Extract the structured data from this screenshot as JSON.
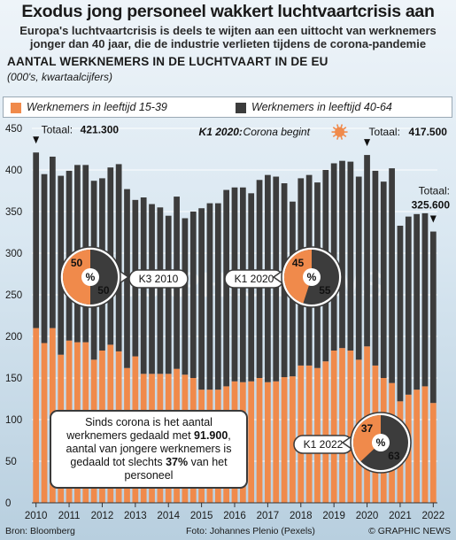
{
  "title": "Exodus jong personeel wakkert luchtvaartcrisis aan",
  "subtitle_line1": "Europa's luchtvaartcrisis is deels te wijten aan een uittocht van werknemers",
  "subtitle_line2": "jonger dan 40 jaar, die de industrie verlieten tijdens de corona-pandemie",
  "watermark": "GRAPHIC NEWS",
  "chart_data": {
    "type": "bar",
    "stacked": true,
    "ylabel": "AANTAL WERKNEMERS IN DE LUCHTVAART IN DE EU",
    "yunit": "(000's, kwartaalcijfers)",
    "ylim": [
      0,
      450
    ],
    "yticks": [
      "0",
      "50",
      "100",
      "150",
      "200",
      "250",
      "300",
      "350",
      "400",
      "450"
    ],
    "x_tick_labels": [
      "2010",
      "2011",
      "2012",
      "2013",
      "2014",
      "2015",
      "2016",
      "2017",
      "2018",
      "2019",
      "2020",
      "2021",
      "2022"
    ],
    "quarters": [
      "2010 K1",
      "2010 K2",
      "2010 K3",
      "2010 K4",
      "2011 K1",
      "2011 K2",
      "2011 K3",
      "2011 K4",
      "2012 K1",
      "2012 K2",
      "2012 K3",
      "2012 K4",
      "2013 K1",
      "2013 K2",
      "2013 K3",
      "2013 K4",
      "2014 K1",
      "2014 K2",
      "2014 K3",
      "2014 K4",
      "2015 K1",
      "2015 K2",
      "2015 K3",
      "2015 K4",
      "2016 K1",
      "2016 K2",
      "2016 K3",
      "2016 K4",
      "2017 K1",
      "2017 K2",
      "2017 K3",
      "2017 K4",
      "2018 K1",
      "2018 K2",
      "2018 K3",
      "2018 K4",
      "2019 K1",
      "2019 K2",
      "2019 K3",
      "2019 K4",
      "2020 K1",
      "2020 K2",
      "2020 K3",
      "2020 K4",
      "2021 K1",
      "2021 K2",
      "2021 K3",
      "2021 K4",
      "2022 K1"
    ],
    "series": [
      {
        "name": "Werknemers in leeftijd 15-39",
        "color": "#f08a4b",
        "values": [
          210,
          192,
          210,
          178,
          195,
          193,
          193,
          172,
          183,
          190,
          182,
          162,
          176,
          155,
          155,
          155,
          155,
          161,
          154,
          150,
          136,
          136,
          136,
          140,
          146,
          145,
          146,
          150,
          145,
          146,
          151,
          152,
          165,
          165,
          162,
          170,
          183,
          186,
          183,
          172,
          188,
          165,
          150,
          144,
          122,
          130,
          136,
          140,
          120
        ]
      },
      {
        "name": "Werknemers in leeftijd 40-64",
        "color": "#3c3c3c",
        "values": [
          211,
          203,
          206,
          215,
          204,
          213,
          213,
          215,
          207,
          213,
          225,
          215,
          188,
          212,
          204,
          200,
          190,
          207,
          188,
          200,
          218,
          224,
          224,
          236,
          233,
          234,
          226,
          238,
          249,
          246,
          233,
          210,
          225,
          229,
          223,
          230,
          225,
          225,
          227,
          220,
          230,
          234,
          236,
          258,
          211,
          214,
          211,
          208,
          206
        ]
      }
    ],
    "totals_label_prefix": "Totaal:",
    "annotations": {
      "first_total": "421.300",
      "peak_total": "417.500",
      "last_total": "325.600",
      "corona_label": "K1 2020:",
      "corona_text": "Corona begint"
    },
    "pies": [
      {
        "label": "K3 2010",
        "young": 50,
        "old": 50
      },
      {
        "label": "K1 2020",
        "young": 45,
        "old": 55
      },
      {
        "label": "K1 2022",
        "young": 37,
        "old": 63
      }
    ]
  },
  "callout": {
    "part1": "Sinds corona is het aantal werknemers gedaald met ",
    "number": "91.900",
    "part2": ", aantal van jongere werknemers is gedaald tot slechts ",
    "pct": "37%",
    "part3": " van het personeel"
  },
  "footer": {
    "source": "Bron: Bloomberg",
    "credit": "Foto: Johannes Plenio (Pexels)",
    "brand": "© GRAPHIC NEWS"
  }
}
